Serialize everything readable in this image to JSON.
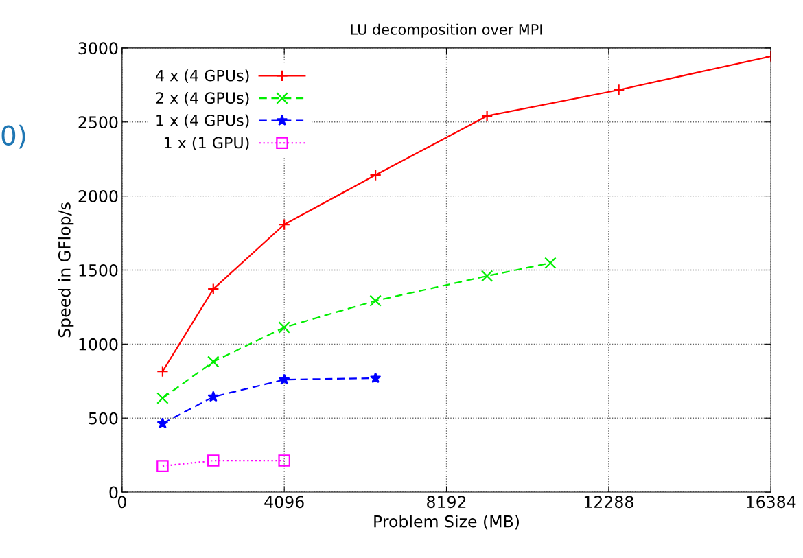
{
  "chart_data": {
    "type": "line",
    "title": "LU decomposition over MPI",
    "xlabel": "Problem Size (MB)",
    "ylabel": "Speed in GFlop/s",
    "xlim": [
      0,
      16384
    ],
    "xticks": [
      0,
      4096,
      8192,
      12288,
      16384
    ],
    "ylim": [
      0,
      3000
    ],
    "yticks": [
      0,
      500,
      1000,
      1500,
      2000,
      2500,
      3000
    ],
    "grid": true,
    "legend": "top left",
    "annotations": [
      "0)"
    ],
    "series": [
      {
        "name": "4 x (4 GPUs)",
        "color": "#ff0000",
        "marker": "plus",
        "line_style": "solid",
        "x": [
          1024,
          2304,
          4096,
          6400,
          9216,
          12544,
          16384
        ],
        "values": [
          816,
          1372,
          1808,
          2142,
          2541,
          2717,
          2944
        ]
      },
      {
        "name": "2 x (4 GPUs)",
        "color": "#00ee00",
        "marker": "cross",
        "line_style": "dashed",
        "x": [
          1024,
          2304,
          4096,
          6400,
          9216,
          10816
        ],
        "values": [
          635,
          881,
          1113,
          1293,
          1460,
          1548
        ]
      },
      {
        "name": "1 x (4 GPUs)",
        "color": "#0000ff",
        "marker": "star",
        "line_style": "dashed",
        "x": [
          1024,
          2304,
          4096,
          6400
        ],
        "values": [
          464,
          644,
          760,
          770
        ]
      },
      {
        "name": "1 x (1 GPU)",
        "color": "#ff00ff",
        "marker": "square",
        "line_style": "dotted",
        "x": [
          1024,
          2304,
          4096
        ],
        "values": [
          176,
          213,
          213
        ]
      }
    ]
  }
}
